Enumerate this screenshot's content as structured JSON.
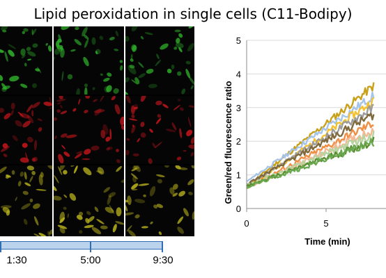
{
  "title": "Lipid peroxidation in single cells (C11-Bodipy)",
  "micrographs": {
    "rows": [
      "green channel",
      "red channel",
      "merged channel"
    ],
    "colors": {
      "green": "#2fb12a",
      "red": "#c2161b",
      "merged": "#b9b21c"
    }
  },
  "timeline": {
    "labels": [
      "1:30",
      "5:00",
      "9:30"
    ],
    "color": "#2f6db5",
    "fill": "#bcd3ee"
  },
  "chart_data": {
    "type": "line",
    "title": "",
    "xlabel": "Time (min)",
    "ylabel": "Green/red fluorescence ratio",
    "xlim": [
      0,
      8
    ],
    "ylim": [
      0,
      5
    ],
    "x_ticks": [
      0,
      5
    ],
    "y_ticks": [
      0,
      1,
      2,
      3,
      4,
      5
    ],
    "grid": true,
    "legend": "none",
    "series": [
      {
        "color": "#c9a01a",
        "x": [
          0,
          8
        ],
        "y": [
          0.65,
          3.65
        ]
      },
      {
        "color": "#a6c4e8",
        "x": [
          0,
          8
        ],
        "y": [
          0.8,
          3.35
        ]
      },
      {
        "color": "#f2c230",
        "x": [
          0,
          8
        ],
        "y": [
          0.6,
          3.2
        ]
      },
      {
        "color": "#9c9c9c",
        "x": [
          0,
          8
        ],
        "y": [
          0.7,
          3.0
        ]
      },
      {
        "color": "#7f6a3e",
        "x": [
          0,
          8
        ],
        "y": [
          0.72,
          2.8
        ]
      },
      {
        "color": "#ef8f45",
        "x": [
          0,
          8
        ],
        "y": [
          0.62,
          2.55
        ]
      },
      {
        "color": "#f6b893",
        "x": [
          0,
          8
        ],
        "y": [
          0.6,
          2.35
        ]
      },
      {
        "color": "#b6d3a0",
        "x": [
          0,
          8
        ],
        "y": [
          0.68,
          2.2
        ]
      },
      {
        "color": "#5b8c2f",
        "x": [
          0,
          8
        ],
        "y": [
          0.66,
          2.0
        ]
      },
      {
        "color": "#6aa84f",
        "x": [
          0,
          8
        ],
        "y": [
          0.63,
          1.98
        ]
      }
    ]
  }
}
